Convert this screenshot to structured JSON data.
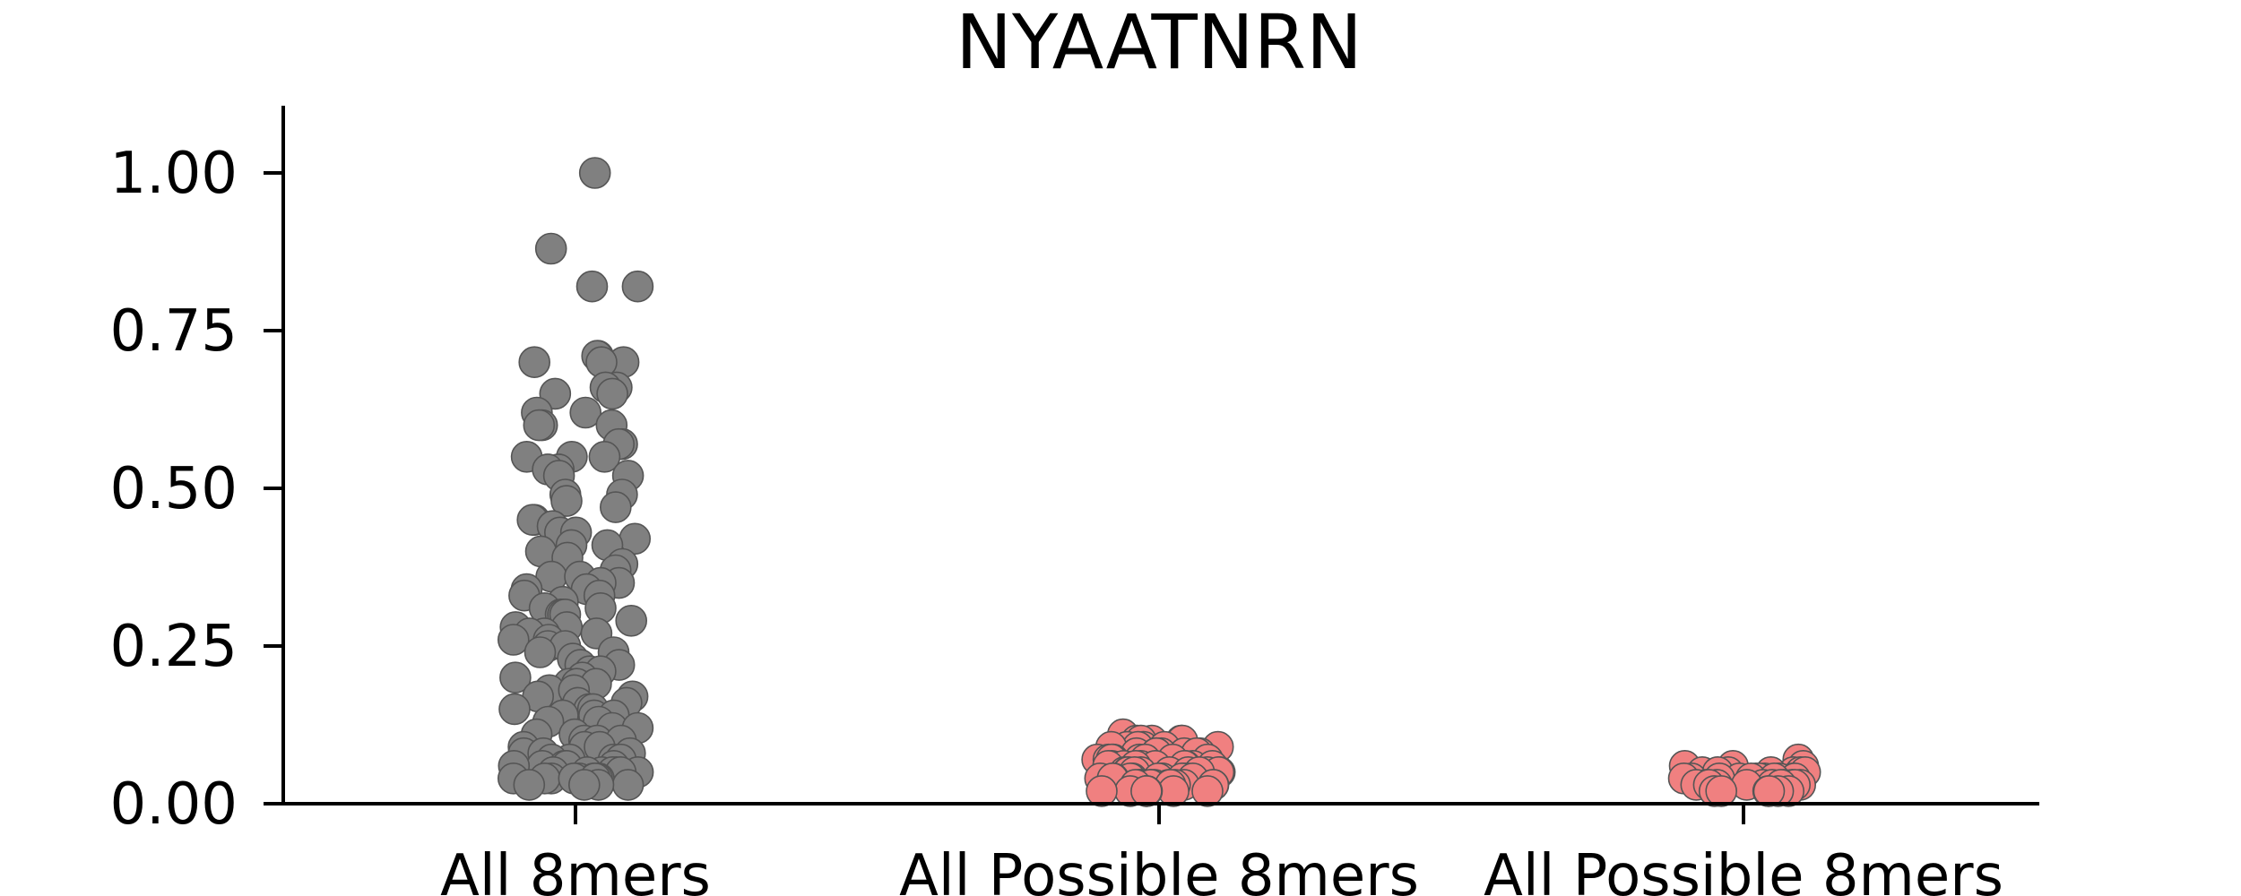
{
  "chart_data": {
    "type": "scatter",
    "title": "NYAATNRN",
    "xlabel": "",
    "ylabel": "",
    "ylim": [
      0,
      1.1
    ],
    "yticks": [
      {
        "value": 0.0,
        "label": "0.00"
      },
      {
        "value": 0.25,
        "label": "0.25"
      },
      {
        "value": 0.5,
        "label": "0.50"
      },
      {
        "value": 0.75,
        "label": "0.75"
      },
      {
        "value": 1.0,
        "label": "1.00"
      }
    ],
    "categories": [
      "All 8mers",
      "All Possible 8mers",
      "All Possible 8mers"
    ],
    "grid": false,
    "series": [
      {
        "category_index": 0,
        "color": "#808080",
        "values": [
          1.0,
          0.88,
          0.82,
          0.82,
          0.71,
          0.71,
          0.7,
          0.7,
          0.7,
          0.66,
          0.66,
          0.65,
          0.65,
          0.62,
          0.62,
          0.6,
          0.6,
          0.6,
          0.57,
          0.57,
          0.55,
          0.55,
          0.55,
          0.53,
          0.53,
          0.52,
          0.52,
          0.49,
          0.49,
          0.48,
          0.47,
          0.45,
          0.45,
          0.44,
          0.43,
          0.43,
          0.42,
          0.41,
          0.41,
          0.4,
          0.39,
          0.38,
          0.37,
          0.36,
          0.36,
          0.35,
          0.35,
          0.34,
          0.34,
          0.33,
          0.33,
          0.32,
          0.31,
          0.31,
          0.3,
          0.3,
          0.3,
          0.29,
          0.28,
          0.28,
          0.27,
          0.27,
          0.27,
          0.26,
          0.26,
          0.25,
          0.25,
          0.24,
          0.24,
          0.23,
          0.22,
          0.22,
          0.21,
          0.21,
          0.2,
          0.2,
          0.19,
          0.19,
          0.19,
          0.18,
          0.18,
          0.17,
          0.17,
          0.16,
          0.16,
          0.15,
          0.15,
          0.15,
          0.14,
          0.14,
          0.14,
          0.13,
          0.13,
          0.12,
          0.12,
          0.11,
          0.11,
          0.1,
          0.1,
          0.1,
          0.09,
          0.09,
          0.09,
          0.08,
          0.08,
          0.08,
          0.07,
          0.07,
          0.07,
          0.07,
          0.06,
          0.06,
          0.06,
          0.06,
          0.06,
          0.05,
          0.05,
          0.05,
          0.05,
          0.05,
          0.05,
          0.05,
          0.04,
          0.04,
          0.04,
          0.04,
          0.04,
          0.04,
          0.04,
          0.04,
          0.04,
          0.03,
          0.03,
          0.03,
          0.03
        ]
      },
      {
        "category_index": 1,
        "color": "#F08080",
        "values": [
          0.11,
          0.1,
          0.1,
          0.1,
          0.1,
          0.1,
          0.09,
          0.09,
          0.09,
          0.09,
          0.09,
          0.09,
          0.08,
          0.08,
          0.08,
          0.08,
          0.08,
          0.08,
          0.08,
          0.07,
          0.07,
          0.07,
          0.07,
          0.07,
          0.07,
          0.07,
          0.07,
          0.07,
          0.06,
          0.06,
          0.06,
          0.06,
          0.06,
          0.06,
          0.06,
          0.06,
          0.06,
          0.06,
          0.05,
          0.05,
          0.05,
          0.05,
          0.05,
          0.05,
          0.05,
          0.05,
          0.05,
          0.05,
          0.05,
          0.04,
          0.04,
          0.04,
          0.04,
          0.04,
          0.04,
          0.04,
          0.04,
          0.04,
          0.04,
          0.04,
          0.04,
          0.03,
          0.03,
          0.03,
          0.03,
          0.03,
          0.03,
          0.03,
          0.03,
          0.03,
          0.03,
          0.03,
          0.03,
          0.02,
          0.02,
          0.02,
          0.02,
          0.02,
          0.02,
          0.02
        ]
      },
      {
        "category_index": 2,
        "color": "#F08080",
        "values": [
          0.07,
          0.06,
          0.06,
          0.06,
          0.05,
          0.05,
          0.05,
          0.05,
          0.05,
          0.05,
          0.05,
          0.04,
          0.04,
          0.04,
          0.04,
          0.04,
          0.04,
          0.04,
          0.04,
          0.04,
          0.04,
          0.04,
          0.04,
          0.04,
          0.03,
          0.03,
          0.03,
          0.03,
          0.03,
          0.03,
          0.03,
          0.03,
          0.03,
          0.03,
          0.03,
          0.03,
          0.02,
          0.02,
          0.02,
          0.02,
          0.02,
          0.02
        ]
      }
    ]
  }
}
